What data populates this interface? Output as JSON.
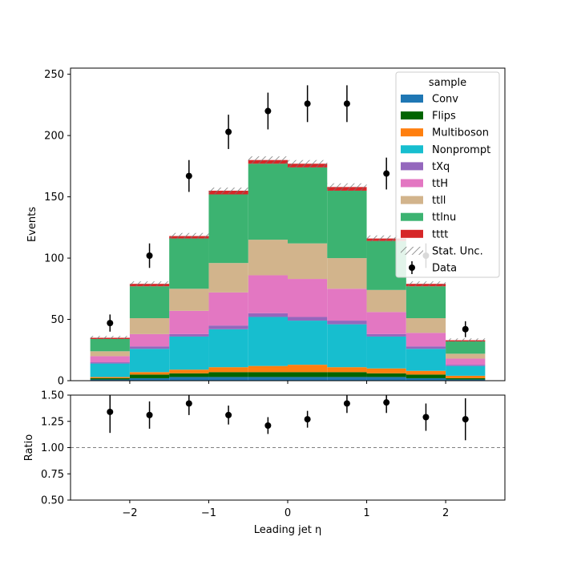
{
  "chart_data": {
    "type": "bar",
    "xlabel": "Leading jet  η",
    "top_panel": {
      "ylabel": "Events",
      "ylim": [
        0,
        255
      ],
      "xlim": [
        -2.75,
        2.75
      ],
      "yticks": [
        0,
        50,
        100,
        150,
        200,
        250
      ],
      "ytick_labels": [
        "0",
        "50",
        "100",
        "150",
        "200",
        "250"
      ]
    },
    "ratio_panel": {
      "ylabel": "Ratio",
      "ylim": [
        0.5,
        1.5
      ],
      "yticks": [
        0.5,
        0.75,
        1.0,
        1.25,
        1.5
      ],
      "ytick_labels": [
        "0.50",
        "0.75",
        "1.00",
        "1.25",
        "1.50"
      ],
      "reference_line": 1.0
    },
    "xticks": [
      -2,
      -1,
      0,
      1,
      2
    ],
    "xtick_labels": [
      "−2",
      "−1",
      "0",
      "1",
      "2"
    ],
    "bin_edges": [
      -2.5,
      -2.0,
      -1.5,
      -1.0,
      -0.5,
      0.0,
      0.5,
      1.0,
      1.5,
      2.0,
      2.5
    ],
    "series": [
      {
        "name": "Conv",
        "color": "#1f77b4",
        "values": [
          1,
          2,
          3,
          3,
          3,
          3,
          3,
          3,
          2,
          1
        ]
      },
      {
        "name": "Flips",
        "color": "#006400",
        "values": [
          1,
          3,
          3,
          4,
          4,
          4,
          4,
          3,
          3,
          1
        ]
      },
      {
        "name": "Multiboson",
        "color": "#ff7f0e",
        "values": [
          1,
          2,
          3,
          4,
          5,
          6,
          4,
          4,
          3,
          2
        ]
      },
      {
        "name": "Nonprompt",
        "color": "#17becf",
        "values": [
          11,
          19,
          27,
          31,
          40,
          36,
          35,
          26,
          18,
          8
        ]
      },
      {
        "name": "tXq",
        "color": "#9467bd",
        "values": [
          1,
          2,
          2,
          3,
          3,
          3,
          3,
          2,
          2,
          1
        ]
      },
      {
        "name": "ttH",
        "color": "#e377c2",
        "values": [
          5,
          10,
          19,
          27,
          31,
          31,
          26,
          18,
          11,
          5
        ]
      },
      {
        "name": "ttll",
        "color": "#d2b48c",
        "values": [
          4,
          13,
          18,
          24,
          29,
          29,
          25,
          18,
          12,
          4
        ]
      },
      {
        "name": "ttlnu",
        "color": "#3cb371",
        "values": [
          10,
          26,
          41,
          56,
          62,
          62,
          55,
          40,
          26,
          10
        ]
      },
      {
        "name": "tttt",
        "color": "#d62728",
        "values": [
          1,
          2,
          2,
          3,
          3,
          3,
          3,
          2,
          2,
          1
        ]
      }
    ],
    "stat_unc_label": "Stat. Unc.",
    "stat_unc": [
      1.5,
      2.0,
      2.5,
      2.5,
      3.0,
      3.0,
      3.0,
      2.5,
      2.0,
      1.5
    ],
    "data": {
      "name": "Data",
      "x": [
        -2.25,
        -1.75,
        -1.25,
        -0.75,
        -0.25,
        0.25,
        0.75,
        1.25,
        1.75,
        2.25
      ],
      "values": [
        47,
        102,
        167,
        203,
        220,
        226,
        226,
        169,
        102,
        42
      ],
      "errors": [
        7,
        10,
        13,
        14,
        15,
        15,
        15,
        13,
        10,
        6.5
      ]
    },
    "ratio": {
      "values": [
        1.34,
        1.31,
        1.42,
        1.31,
        1.21,
        1.27,
        1.42,
        1.43,
        1.29,
        1.27
      ],
      "errors": [
        0.2,
        0.13,
        0.11,
        0.09,
        0.08,
        0.08,
        0.09,
        0.1,
        0.13,
        0.2
      ]
    },
    "legend": {
      "title": "sample",
      "placement": "top-right",
      "entries": [
        "Conv",
        "Flips",
        "Multiboson",
        "Nonprompt",
        "tXq",
        "ttH",
        "ttll",
        "ttlnu",
        "tttt",
        "Stat. Unc.",
        "Data"
      ]
    }
  }
}
